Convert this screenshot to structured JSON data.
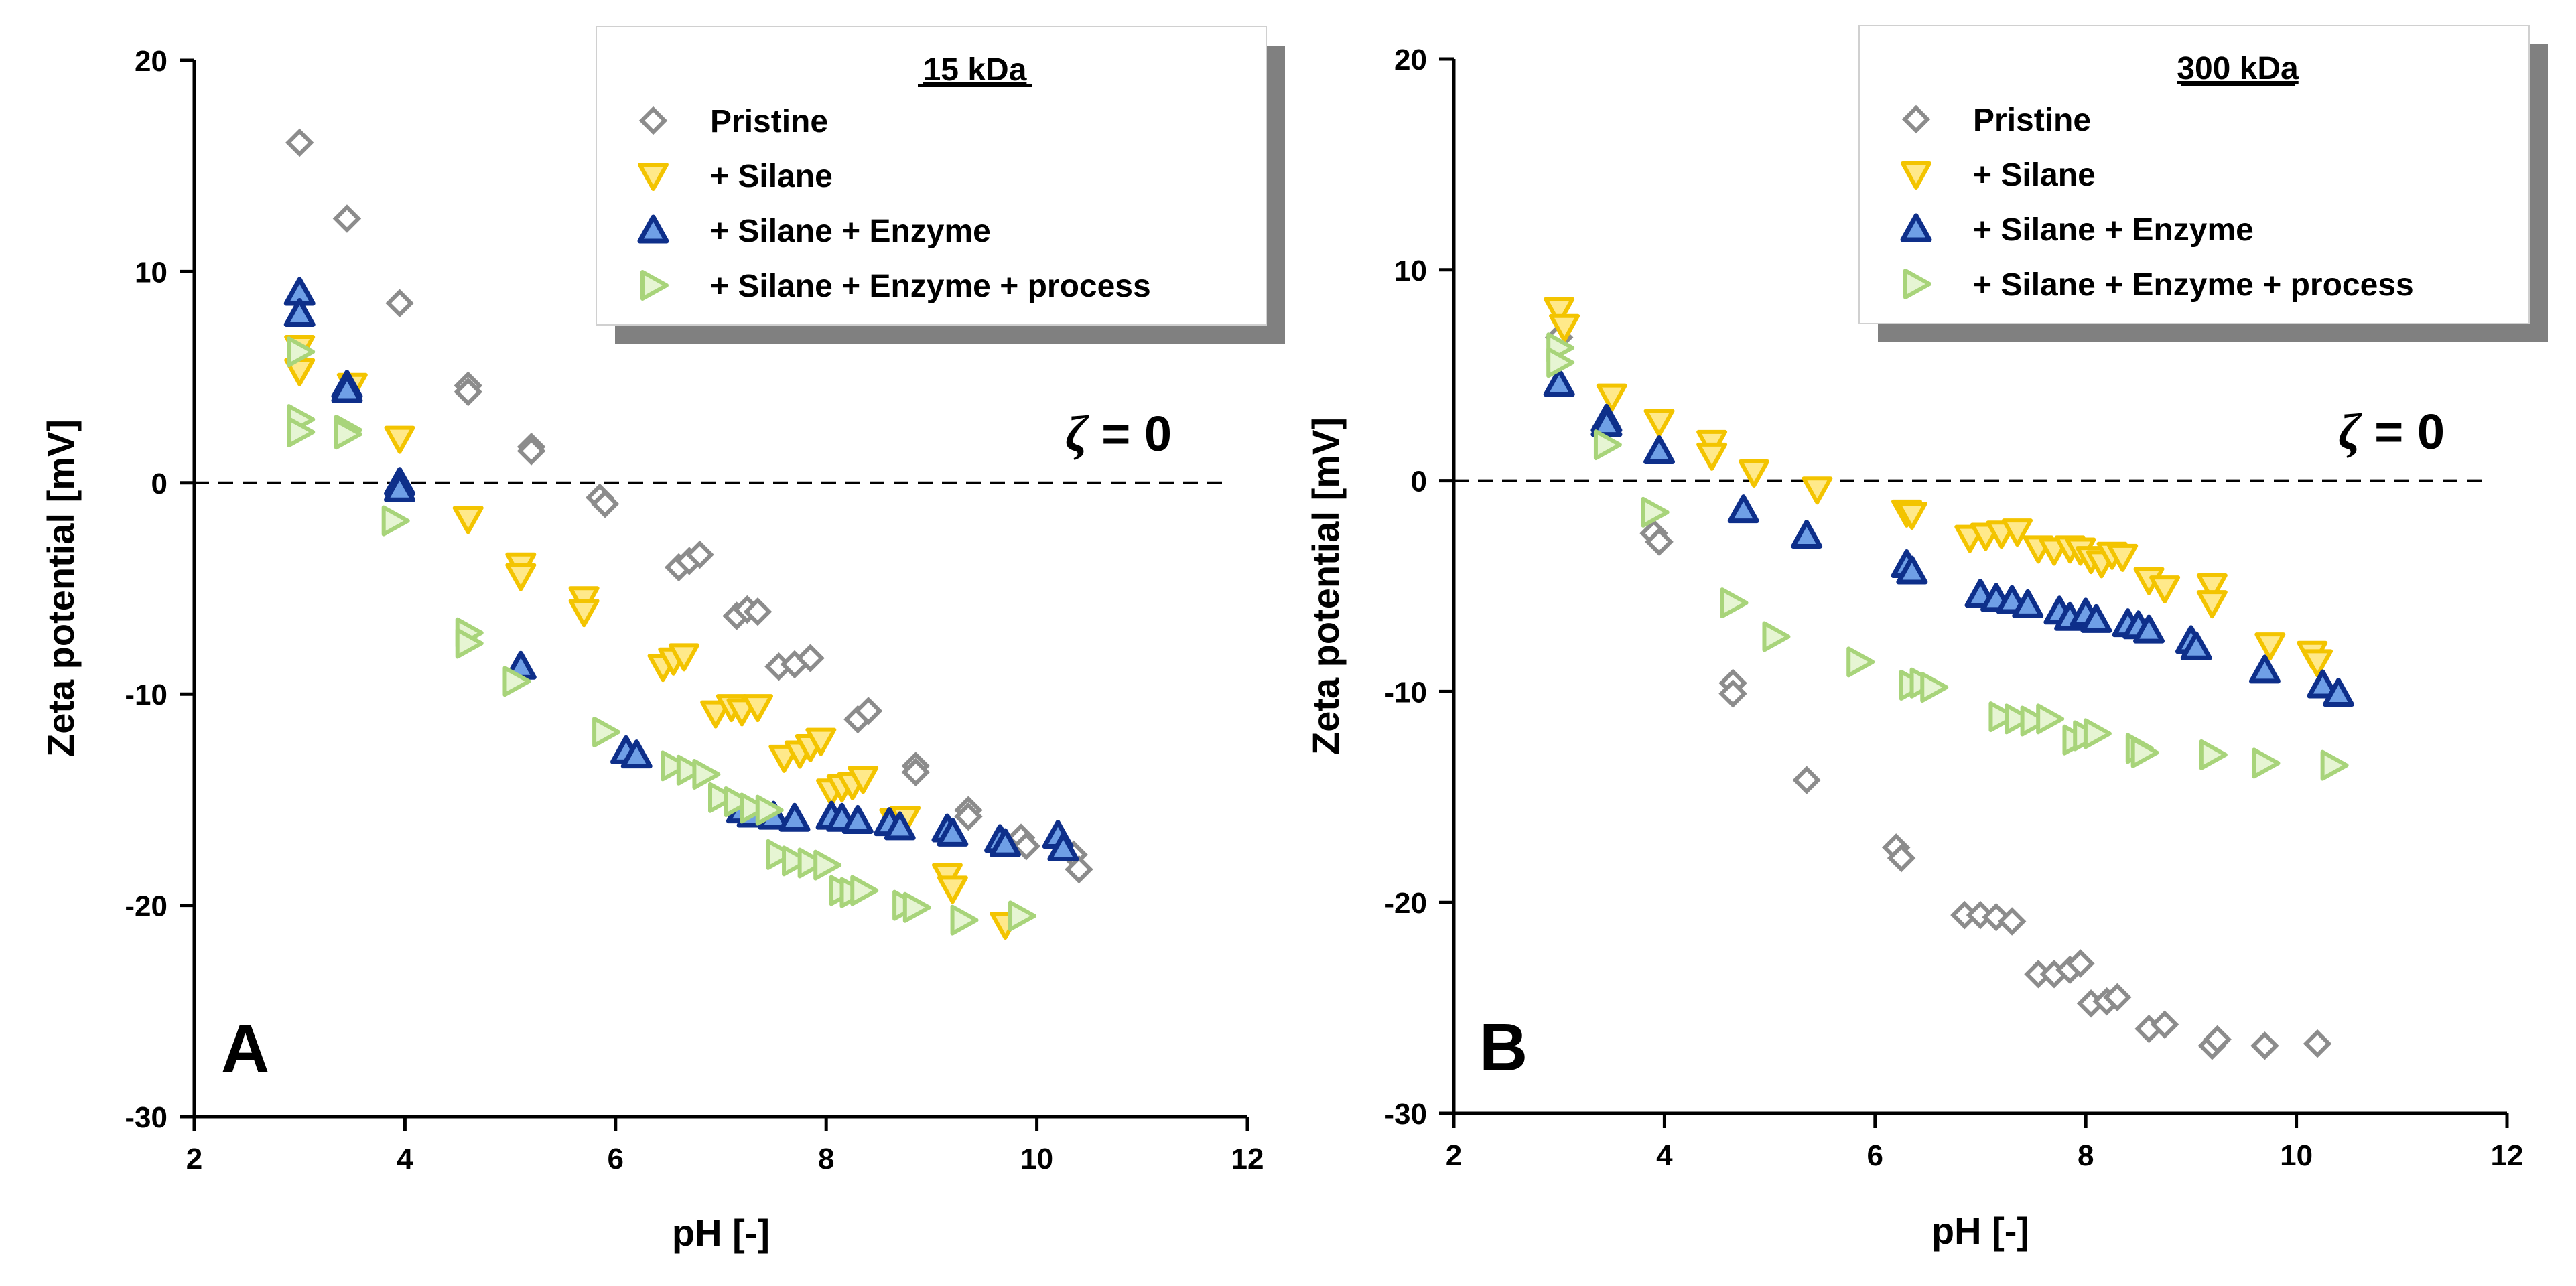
{
  "chart_data": [
    {
      "type": "scatter",
      "panel_label": "A",
      "legend_title": "15 kDa",
      "xlabel": "pH [-]",
      "ylabel": "Zeta potential [mV]",
      "xlim": [
        2,
        12
      ],
      "ylim": [
        -30,
        20
      ],
      "xticks": [
        "2",
        "4",
        "6",
        "8",
        "10",
        "12"
      ],
      "yticks": [
        "20",
        "10",
        "0",
        "-10",
        "-20",
        "-30"
      ],
      "reference_line": {
        "y": 0,
        "label_symbol": "ζ",
        "label_rest": " = 0"
      },
      "series": [
        {
          "name": "Pristine",
          "marker": "diamond",
          "color": "#8c8c8c",
          "points": [
            [
              3.0,
              16.1
            ],
            [
              3.45,
              12.5
            ],
            [
              3.95,
              8.5
            ],
            [
              4.6,
              4.6
            ],
            [
              4.6,
              4.3
            ],
            [
              5.2,
              1.7
            ],
            [
              5.2,
              1.5
            ],
            [
              5.85,
              -0.7
            ],
            [
              5.9,
              -1.0
            ],
            [
              6.6,
              -4.0
            ],
            [
              6.7,
              -3.7
            ],
            [
              6.8,
              -3.4
            ],
            [
              7.15,
              -6.3
            ],
            [
              7.25,
              -6.0
            ],
            [
              7.35,
              -6.1
            ],
            [
              7.55,
              -8.7
            ],
            [
              7.7,
              -8.6
            ],
            [
              7.85,
              -8.3
            ],
            [
              8.3,
              -11.2
            ],
            [
              8.4,
              -10.8
            ],
            [
              8.85,
              -13.4
            ],
            [
              8.85,
              -13.7
            ],
            [
              9.35,
              -15.5
            ],
            [
              9.35,
              -15.8
            ],
            [
              9.85,
              -16.8
            ],
            [
              9.9,
              -17.2
            ],
            [
              10.35,
              -17.6
            ],
            [
              10.4,
              -18.3
            ]
          ]
        },
        {
          "name": "+ Silane",
          "marker": "triangle-down",
          "color": "#f3c400",
          "points": [
            [
              3.0,
              6.4
            ],
            [
              3.0,
              5.3
            ],
            [
              3.5,
              4.6
            ],
            [
              3.95,
              2.1
            ],
            [
              4.6,
              -1.7
            ],
            [
              5.1,
              -3.9
            ],
            [
              5.1,
              -4.4
            ],
            [
              5.7,
              -5.5
            ],
            [
              5.7,
              -6.1
            ],
            [
              6.45,
              -8.7
            ],
            [
              6.55,
              -8.4
            ],
            [
              6.65,
              -8.2
            ],
            [
              6.95,
              -10.9
            ],
            [
              7.1,
              -10.6
            ],
            [
              7.2,
              -10.8
            ],
            [
              7.35,
              -10.6
            ],
            [
              7.6,
              -13.0
            ],
            [
              7.75,
              -12.8
            ],
            [
              7.85,
              -12.5
            ],
            [
              7.95,
              -12.2
            ],
            [
              8.05,
              -14.6
            ],
            [
              8.15,
              -14.4
            ],
            [
              8.25,
              -14.3
            ],
            [
              8.35,
              -14.0
            ],
            [
              8.65,
              -16.0
            ],
            [
              8.75,
              -15.9
            ],
            [
              9.15,
              -18.6
            ],
            [
              9.2,
              -19.2
            ],
            [
              9.7,
              -20.9
            ]
          ]
        },
        {
          "name": "+ Silane + Enzyme",
          "marker": "triangle-up",
          "color": "#1f4fb8",
          "points": [
            [
              3.0,
              9.0
            ],
            [
              3.0,
              8.0
            ],
            [
              3.45,
              4.6
            ],
            [
              3.45,
              4.4
            ],
            [
              3.95,
              0.0
            ],
            [
              3.95,
              -0.3
            ],
            [
              5.1,
              -8.7
            ],
            [
              6.1,
              -12.7
            ],
            [
              6.2,
              -12.9
            ],
            [
              7.2,
              -15.5
            ],
            [
              7.3,
              -15.7
            ],
            [
              7.5,
              -15.8
            ],
            [
              7.7,
              -15.9
            ],
            [
              8.05,
              -15.8
            ],
            [
              8.15,
              -15.9
            ],
            [
              8.3,
              -16.0
            ],
            [
              8.6,
              -16.1
            ],
            [
              8.7,
              -16.3
            ],
            [
              9.15,
              -16.4
            ],
            [
              9.2,
              -16.6
            ],
            [
              9.65,
              -16.9
            ],
            [
              9.7,
              -17.1
            ],
            [
              10.2,
              -16.7
            ],
            [
              10.25,
              -17.3
            ]
          ]
        },
        {
          "name": "+ Silane + Enzyme + process",
          "marker": "triangle-right",
          "color": "#a8d47a",
          "points": [
            [
              3.0,
              6.2
            ],
            [
              3.0,
              3.0
            ],
            [
              3.0,
              2.4
            ],
            [
              3.45,
              2.5
            ],
            [
              3.45,
              2.3
            ],
            [
              3.9,
              -1.8
            ],
            [
              4.6,
              -7.1
            ],
            [
              4.6,
              -7.6
            ],
            [
              5.05,
              -9.4
            ],
            [
              5.9,
              -11.8
            ],
            [
              6.55,
              -13.4
            ],
            [
              6.7,
              -13.6
            ],
            [
              6.85,
              -13.8
            ],
            [
              7.0,
              -14.9
            ],
            [
              7.15,
              -15.1
            ],
            [
              7.3,
              -15.4
            ],
            [
              7.45,
              -15.5
            ],
            [
              7.55,
              -17.6
            ],
            [
              7.7,
              -17.9
            ],
            [
              7.85,
              -18.0
            ],
            [
              8.0,
              -18.1
            ],
            [
              8.15,
              -19.3
            ],
            [
              8.25,
              -19.4
            ],
            [
              8.35,
              -19.3
            ],
            [
              8.75,
              -20.0
            ],
            [
              8.85,
              -20.1
            ],
            [
              9.3,
              -20.7
            ],
            [
              9.85,
              -20.5
            ]
          ]
        }
      ]
    },
    {
      "type": "scatter",
      "panel_label": "B",
      "legend_title": "300 kDa",
      "xlabel": "pH [-]",
      "ylabel": "Zeta potential [mV]",
      "xlim": [
        2,
        12
      ],
      "ylim": [
        -30,
        20
      ],
      "xticks": [
        "2",
        "4",
        "6",
        "8",
        "10",
        "12"
      ],
      "yticks": [
        "20",
        "10",
        "0",
        "-10",
        "-20",
        "-30"
      ],
      "reference_line": {
        "y": 0,
        "label_symbol": "ζ",
        "label_rest": " = 0"
      },
      "series": [
        {
          "name": "Pristine",
          "marker": "diamond",
          "color": "#8c8c8c",
          "points": [
            [
              3.0,
              6.8
            ],
            [
              3.45,
              2.6
            ],
            [
              3.9,
              -2.5
            ],
            [
              3.95,
              -2.9
            ],
            [
              4.65,
              -9.6
            ],
            [
              4.65,
              -10.1
            ],
            [
              5.35,
              -14.2
            ],
            [
              6.2,
              -17.4
            ],
            [
              6.25,
              -17.9
            ],
            [
              6.85,
              -20.6
            ],
            [
              7.0,
              -20.6
            ],
            [
              7.15,
              -20.7
            ],
            [
              7.3,
              -20.9
            ],
            [
              7.55,
              -23.4
            ],
            [
              7.7,
              -23.4
            ],
            [
              7.85,
              -23.2
            ],
            [
              7.95,
              -22.9
            ],
            [
              8.05,
              -24.8
            ],
            [
              8.2,
              -24.7
            ],
            [
              8.3,
              -24.5
            ],
            [
              8.6,
              -26.0
            ],
            [
              8.75,
              -25.8
            ],
            [
              9.2,
              -26.8
            ],
            [
              9.25,
              -26.5
            ],
            [
              9.7,
              -26.8
            ],
            [
              10.2,
              -26.7
            ]
          ]
        },
        {
          "name": "+ Silane",
          "marker": "triangle-down",
          "color": "#f3c400",
          "points": [
            [
              3.0,
              8.1
            ],
            [
              3.05,
              7.3
            ],
            [
              3.5,
              4.0
            ],
            [
              3.95,
              2.8
            ],
            [
              4.45,
              1.8
            ],
            [
              4.45,
              1.2
            ],
            [
              4.85,
              0.4
            ],
            [
              5.45,
              -0.4
            ],
            [
              6.3,
              -1.5
            ],
            [
              6.35,
              -1.6
            ],
            [
              6.9,
              -2.7
            ],
            [
              7.05,
              -2.6
            ],
            [
              7.2,
              -2.5
            ],
            [
              7.35,
              -2.4
            ],
            [
              7.55,
              -3.2
            ],
            [
              7.7,
              -3.3
            ],
            [
              7.85,
              -3.2
            ],
            [
              7.95,
              -3.3
            ],
            [
              8.05,
              -3.7
            ],
            [
              8.15,
              -3.9
            ],
            [
              8.25,
              -3.5
            ],
            [
              8.35,
              -3.6
            ],
            [
              8.6,
              -4.7
            ],
            [
              8.75,
              -5.1
            ],
            [
              9.2,
              -5.0
            ],
            [
              9.2,
              -5.8
            ],
            [
              9.75,
              -7.8
            ],
            [
              10.15,
              -8.2
            ],
            [
              10.2,
              -8.6
            ]
          ]
        },
        {
          "name": "+ Silane + Enzyme",
          "marker": "triangle-up",
          "color": "#1f4fb8",
          "points": [
            [
              3.0,
              4.6
            ],
            [
              3.45,
              2.9
            ],
            [
              3.45,
              2.7
            ],
            [
              3.95,
              1.4
            ],
            [
              4.75,
              -1.4
            ],
            [
              5.35,
              -2.6
            ],
            [
              6.3,
              -4.0
            ],
            [
              6.35,
              -4.3
            ],
            [
              7.0,
              -5.4
            ],
            [
              7.15,
              -5.6
            ],
            [
              7.3,
              -5.7
            ],
            [
              7.45,
              -5.9
            ],
            [
              7.75,
              -6.2
            ],
            [
              7.85,
              -6.5
            ],
            [
              8.0,
              -6.3
            ],
            [
              8.1,
              -6.6
            ],
            [
              8.4,
              -6.8
            ],
            [
              8.5,
              -6.9
            ],
            [
              8.6,
              -7.1
            ],
            [
              9.0,
              -7.6
            ],
            [
              9.05,
              -7.9
            ],
            [
              9.7,
              -9.0
            ],
            [
              10.25,
              -9.7
            ],
            [
              10.4,
              -10.1
            ]
          ]
        },
        {
          "name": "+ Silane + Enzyme + process",
          "marker": "triangle-right",
          "color": "#a8d47a",
          "points": [
            [
              3.0,
              6.3
            ],
            [
              3.0,
              5.6
            ],
            [
              3.45,
              1.7
            ],
            [
              3.9,
              -1.5
            ],
            [
              4.65,
              -5.8
            ],
            [
              5.05,
              -7.4
            ],
            [
              5.85,
              -8.6
            ],
            [
              6.35,
              -9.7
            ],
            [
              6.45,
              -9.6
            ],
            [
              6.55,
              -9.8
            ],
            [
              7.2,
              -11.2
            ],
            [
              7.35,
              -11.3
            ],
            [
              7.5,
              -11.4
            ],
            [
              7.65,
              -11.3
            ],
            [
              7.9,
              -12.3
            ],
            [
              8.0,
              -12.1
            ],
            [
              8.1,
              -12.0
            ],
            [
              8.5,
              -12.7
            ],
            [
              8.55,
              -12.9
            ],
            [
              9.2,
              -13.0
            ],
            [
              9.7,
              -13.4
            ],
            [
              10.35,
              -13.5
            ]
          ]
        }
      ]
    }
  ]
}
